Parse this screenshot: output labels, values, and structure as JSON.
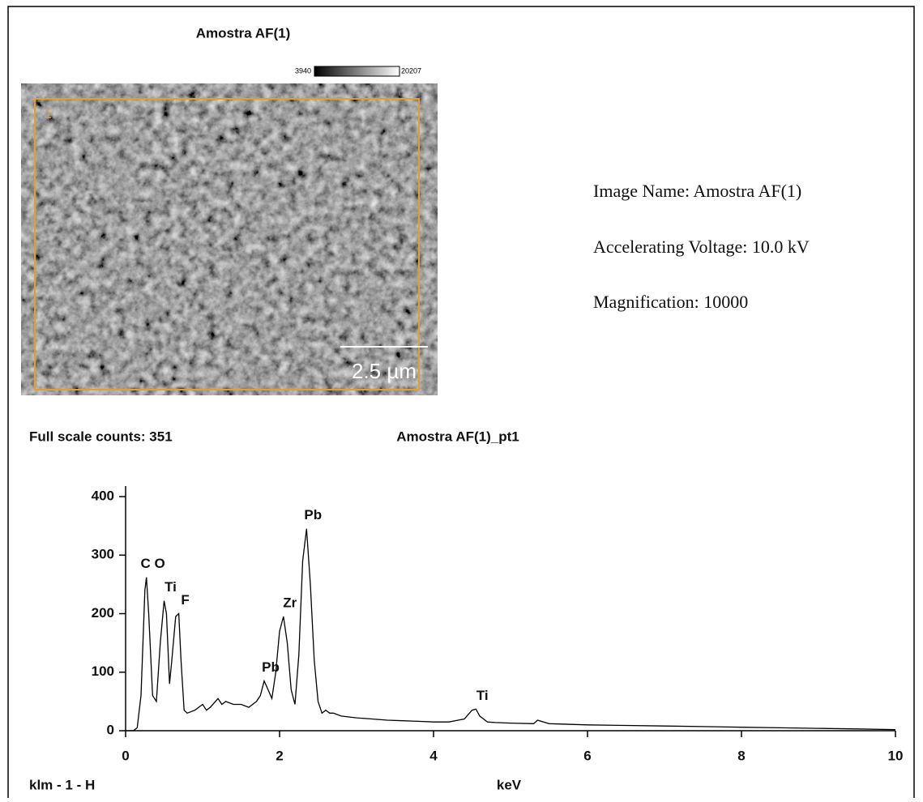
{
  "image_title": "Amostra AF(1)",
  "colorbar": {
    "min_label": "3940",
    "max_label": "20207"
  },
  "image_region": "1",
  "scale_bar": "2.5 µm",
  "info": [
    "Image Name: Amostra AF(1)",
    "Accelerating Voltage: 10.0 kV",
    "Magnification: 10000"
  ],
  "chart_data": {
    "type": "line",
    "header_left": "Full scale counts: 351",
    "title": "Amostra AF(1)_pt1",
    "footer_left": "klm - 1 - H",
    "x_label": "keV",
    "color": "#000000",
    "xlim": [
      0,
      10
    ],
    "xticks": [
      0,
      2,
      4,
      6,
      8,
      10
    ],
    "ylim": [
      0,
      400
    ],
    "yticks": [
      0,
      100,
      200,
      300,
      400
    ],
    "x": [
      0,
      0.1,
      0.15,
      0.2,
      0.25,
      0.27,
      0.3,
      0.35,
      0.4,
      0.45,
      0.5,
      0.53,
      0.57,
      0.6,
      0.65,
      0.69,
      0.72,
      0.76,
      0.8,
      0.9,
      1.0,
      1.05,
      1.1,
      1.2,
      1.25,
      1.3,
      1.4,
      1.5,
      1.6,
      1.7,
      1.75,
      1.8,
      1.85,
      1.9,
      1.95,
      2.0,
      2.05,
      2.1,
      2.15,
      2.2,
      2.25,
      2.3,
      2.35,
      2.4,
      2.45,
      2.5,
      2.55,
      2.6,
      2.65,
      2.7,
      2.8,
      3.0,
      3.2,
      3.4,
      3.6,
      3.8,
      4.0,
      4.2,
      4.4,
      4.5,
      4.55,
      4.6,
      4.7,
      4.8,
      5.0,
      5.3,
      5.35,
      5.5,
      6.0,
      6.5,
      7.0,
      7.5,
      8.0,
      8.5,
      9.0,
      9.5,
      10.0
    ],
    "values": [
      0,
      0,
      5,
      60,
      240,
      262,
      200,
      60,
      50,
      150,
      222,
      200,
      80,
      120,
      195,
      200,
      120,
      35,
      30,
      35,
      45,
      35,
      40,
      55,
      45,
      50,
      45,
      45,
      40,
      50,
      60,
      85,
      70,
      55,
      100,
      170,
      195,
      150,
      70,
      45,
      130,
      290,
      345,
      250,
      120,
      50,
      30,
      35,
      30,
      30,
      25,
      22,
      20,
      18,
      17,
      16,
      15,
      15,
      20,
      35,
      37,
      25,
      15,
      14,
      13,
      12,
      18,
      12,
      10,
      9,
      8,
      7,
      6,
      5,
      4,
      3,
      2
    ],
    "peaks": [
      {
        "label": "C O",
        "x": 0.27,
        "y": 262
      },
      {
        "label": "Ti",
        "x": 0.5,
        "y": 222
      },
      {
        "label": "F",
        "x": 0.69,
        "y": 200
      },
      {
        "label": "Pb",
        "x": 1.8,
        "y": 85
      },
      {
        "label": "Zr",
        "x": 2.05,
        "y": 195
      },
      {
        "label": "Pb",
        "x": 2.35,
        "y": 345
      },
      {
        "label": "Ti",
        "x": 4.55,
        "y": 37
      }
    ]
  }
}
